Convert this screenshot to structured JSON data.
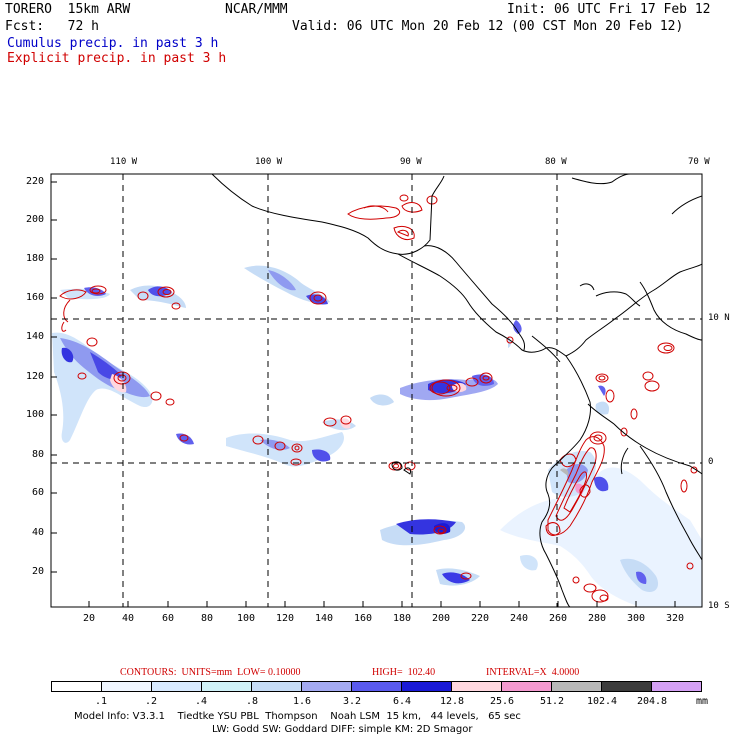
{
  "header": {
    "model": "TORERO  15km ARW",
    "org": "NCAR/MMM",
    "init": "Init: 06 UTC Fri 17 Feb 12",
    "fcst": "Fcst:   72 h",
    "valid": "Valid: 06 UTC Mon 20 Feb 12 (00 CST Mon 20 Feb 12)",
    "field1": "Cumulus precip. in past 3 h",
    "field2": "Explicit precip. in past 3 h"
  },
  "colors": {
    "field1": "#0000c8",
    "field2": "#d00000",
    "coast": "#000000",
    "grid": "#000000"
  },
  "map": {
    "lon_labels": [
      "110 W",
      "100 W",
      "90 W",
      "80 W",
      "70 W"
    ],
    "lat_labels": [
      "10 N",
      "0",
      "10 S"
    ],
    "x_ticks": [
      "20",
      "40",
      "60",
      "80",
      "100",
      "120",
      "140",
      "160",
      "180",
      "200",
      "220",
      "240",
      "260",
      "280",
      "300",
      "320"
    ],
    "y_ticks": [
      "20",
      "40",
      "60",
      "80",
      "100",
      "120",
      "140",
      "160",
      "180",
      "200",
      "220"
    ]
  },
  "contours": {
    "label": "CONTOURS:  UNITS=mm  LOW= 0.10000",
    "high": "HIGH=  102.40",
    "interval": "INTERVAL=X  4.0000"
  },
  "legend": {
    "units": "mm",
    "ticks": [
      ".1",
      ".2",
      ".4",
      ".8",
      "1.6",
      "3.2",
      "6.4",
      "12.8",
      "25.6",
      "51.2",
      "102.4",
      "204.8"
    ],
    "colors": [
      "#ffffff",
      "#f0f6ff",
      "#d8eaff",
      "#d0f2f8",
      "#c6dcf6",
      "#a4aaf2",
      "#5a5aee",
      "#1a1ad6",
      "#ffd8e0",
      "#f49ad0",
      "#b8b8b8",
      "#3c3c3c",
      "#d4a0f4"
    ]
  },
  "footer": {
    "line1": "Model Info: V3.3.1    Tiedtke YSU PBL  Thompson    Noah LSM  15 km,   44 levels,   65 sec",
    "line2": "LW: Godd SW: Goddard DIFF: simple KM: 2D Smagor"
  }
}
